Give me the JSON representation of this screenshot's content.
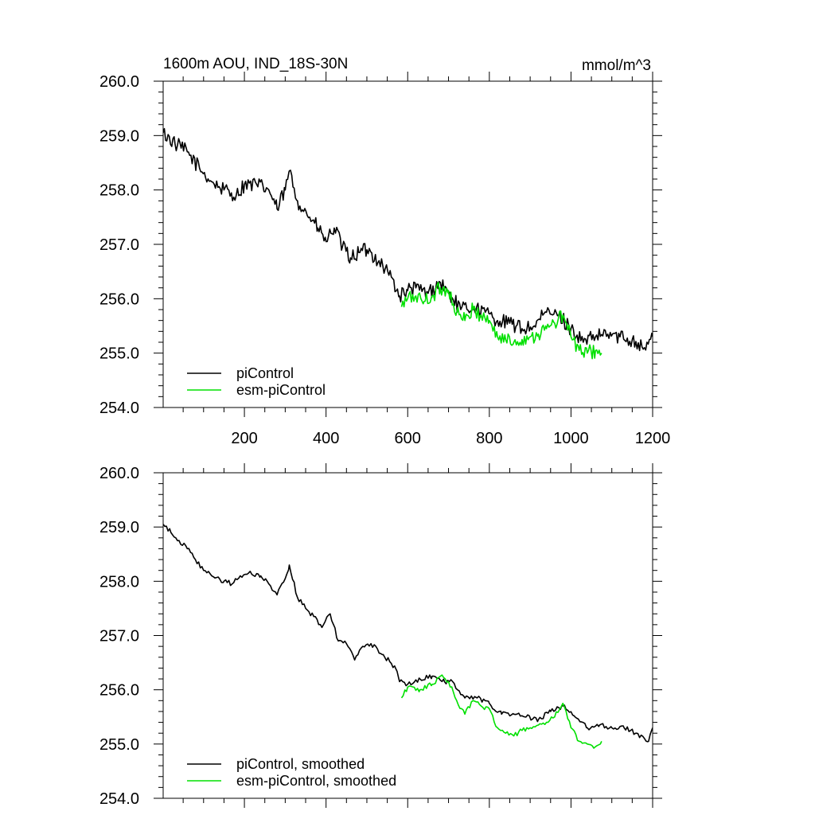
{
  "chart_data": [
    {
      "type": "line",
      "title": "1600m AOU, IND_18S-30N",
      "units": "mmol/m^3",
      "xlim": [
        1,
        1200
      ],
      "ylim": [
        254.0,
        260.0
      ],
      "xticks": [
        200,
        400,
        600,
        800,
        1000,
        1200
      ],
      "xtick_labels": [
        "200",
        "400",
        "600",
        "800",
        "1000",
        "1200"
      ],
      "yticks": [
        254.0,
        255.0,
        256.0,
        257.0,
        258.0,
        259.0,
        260.0
      ],
      "ytick_labels": [
        "254.0",
        "255.0",
        "256.0",
        "257.0",
        "258.0",
        "259.0",
        "260.0"
      ],
      "legend_position": "bottom-left",
      "series": [
        {
          "name": "piControl",
          "color": "#000000",
          "x": [
            1,
            30,
            60,
            90,
            120,
            150,
            180,
            200,
            230,
            260,
            280,
            300,
            310,
            330,
            360,
            380,
            400,
            420,
            440,
            460,
            480,
            500,
            530,
            560,
            580,
            600,
            620,
            650,
            680,
            700,
            730,
            760,
            790,
            820,
            850,
            880,
            910,
            940,
            970,
            1000,
            1030,
            1060,
            1090,
            1120,
            1150,
            1180,
            1200
          ],
          "values": [
            259.05,
            258.85,
            258.7,
            258.4,
            258.15,
            258.0,
            257.9,
            258.1,
            258.1,
            258.0,
            257.65,
            258.0,
            258.35,
            257.8,
            257.5,
            257.3,
            257.05,
            257.3,
            256.95,
            256.75,
            256.85,
            256.9,
            256.7,
            256.4,
            256.05,
            256.15,
            256.2,
            256.1,
            256.3,
            256.1,
            255.8,
            255.85,
            255.75,
            255.6,
            255.55,
            255.45,
            255.5,
            255.75,
            255.7,
            255.45,
            255.2,
            255.3,
            255.35,
            255.3,
            255.25,
            255.1,
            255.3
          ]
        },
        {
          "name": "esm-piControl",
          "color": "#00e000",
          "x": [
            585,
            600,
            620,
            640,
            660,
            680,
            700,
            720,
            740,
            760,
            780,
            800,
            820,
            840,
            860,
            880,
            900,
            920,
            940,
            960,
            980,
            1000,
            1020,
            1040,
            1060,
            1075
          ],
          "values": [
            255.85,
            256.0,
            256.05,
            255.95,
            256.05,
            256.2,
            256.15,
            255.75,
            255.6,
            255.8,
            255.7,
            255.6,
            255.3,
            255.25,
            255.2,
            255.25,
            255.3,
            255.35,
            255.45,
            255.55,
            255.7,
            255.3,
            255.05,
            255.0,
            255.05,
            255.0
          ]
        }
      ]
    },
    {
      "type": "line",
      "title": "",
      "xlim": [
        1,
        1200
      ],
      "ylim": [
        254.0,
        260.0
      ],
      "yticks": [
        254.0,
        255.0,
        256.0,
        257.0,
        258.0,
        259.0,
        260.0
      ],
      "ytick_labels": [
        "254.0",
        "255.0",
        "256.0",
        "257.0",
        "258.0",
        "259.0",
        "260.0"
      ],
      "legend_position": "bottom-left",
      "series": [
        {
          "name": "piControl, smoothed",
          "color": "#000000",
          "x": [
            1,
            20,
            40,
            60,
            80,
            100,
            120,
            150,
            170,
            190,
            210,
            240,
            260,
            280,
            300,
            310,
            330,
            350,
            370,
            390,
            410,
            430,
            450,
            470,
            490,
            510,
            540,
            570,
            580,
            600,
            630,
            660,
            690,
            710,
            740,
            770,
            800,
            830,
            860,
            890,
            920,
            950,
            980,
            1010,
            1040,
            1070,
            1100,
            1130,
            1160,
            1190,
            1200
          ],
          "values": [
            259.05,
            258.9,
            258.75,
            258.6,
            258.4,
            258.2,
            258.1,
            258.0,
            257.95,
            258.1,
            258.15,
            258.1,
            257.95,
            257.75,
            258.05,
            258.3,
            257.7,
            257.5,
            257.35,
            257.15,
            257.4,
            256.9,
            256.85,
            256.55,
            256.8,
            256.85,
            256.65,
            256.4,
            256.15,
            256.1,
            256.2,
            256.25,
            256.15,
            256.15,
            255.85,
            255.85,
            255.75,
            255.55,
            255.55,
            255.5,
            255.45,
            255.6,
            255.7,
            255.5,
            255.3,
            255.35,
            255.3,
            255.3,
            255.2,
            255.05,
            255.3
          ]
        },
        {
          "name": "esm-piControl, smoothed",
          "color": "#00e000",
          "x": [
            585,
            600,
            630,
            660,
            680,
            700,
            720,
            740,
            760,
            780,
            800,
            820,
            840,
            860,
            880,
            900,
            920,
            940,
            960,
            980,
            1000,
            1020,
            1040,
            1060,
            1075
          ],
          "values": [
            255.85,
            256.05,
            256.0,
            256.1,
            256.25,
            256.15,
            255.8,
            255.55,
            255.8,
            255.7,
            255.65,
            255.3,
            255.2,
            255.15,
            255.25,
            255.3,
            255.35,
            255.4,
            255.5,
            255.75,
            255.3,
            255.05,
            255.0,
            254.95,
            255.05
          ]
        }
      ]
    }
  ]
}
